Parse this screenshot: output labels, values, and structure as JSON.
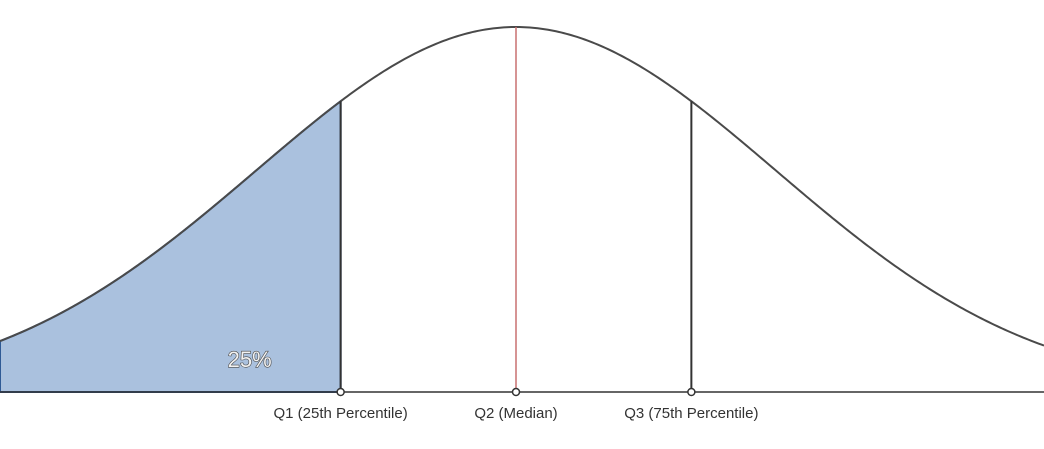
{
  "diagram": {
    "type": "normal-distribution-quartiles",
    "colors": {
      "curve": "#4a4a4a",
      "shaded_fill": "#aac1de",
      "shaded_outline": "#2f5a95",
      "median_line": "#c97070",
      "quartile_line": "#333333",
      "axis": "#333333",
      "marker_fill": "#ffffff"
    },
    "shaded_area_label": "25%",
    "markers": [
      {
        "id": "q1",
        "label": "Q1 (25th Percentile)",
        "z": -0.6745
      },
      {
        "id": "q2",
        "label": "Q2 (Median)",
        "z": 0
      },
      {
        "id": "q3",
        "label": "Q3 (75th Percentile)",
        "z": 0.6745
      }
    ]
  }
}
